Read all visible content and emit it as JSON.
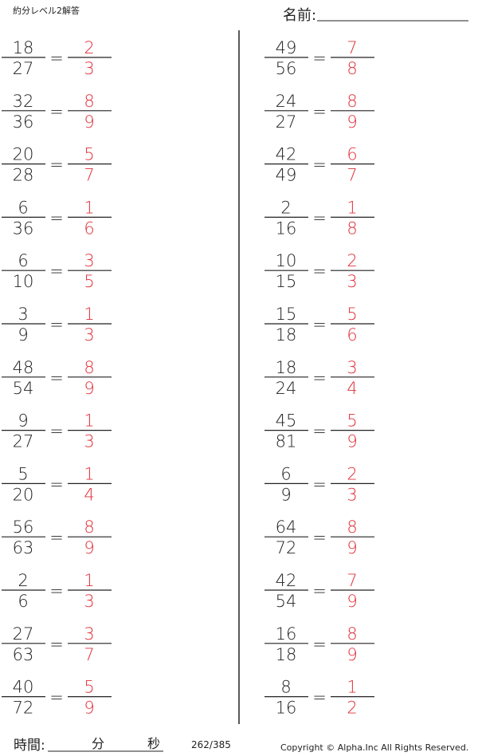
{
  "header": {
    "title": "約分レベル2解答",
    "name_label": "名前:"
  },
  "equals": "=",
  "problems": {
    "left": [
      [
        "18",
        "27",
        "2",
        "3"
      ],
      [
        "32",
        "36",
        "8",
        "9"
      ],
      [
        "20",
        "28",
        "5",
        "7"
      ],
      [
        "6",
        "36",
        "1",
        "6"
      ],
      [
        "6",
        "10",
        "3",
        "5"
      ],
      [
        "3",
        "9",
        "1",
        "3"
      ],
      [
        "48",
        "54",
        "8",
        "9"
      ],
      [
        "9",
        "27",
        "1",
        "3"
      ],
      [
        "5",
        "20",
        "1",
        "4"
      ],
      [
        "56",
        "63",
        "8",
        "9"
      ],
      [
        "2",
        "6",
        "1",
        "3"
      ],
      [
        "27",
        "63",
        "3",
        "7"
      ],
      [
        "40",
        "72",
        "5",
        "9"
      ]
    ],
    "right": [
      [
        "49",
        "56",
        "7",
        "8"
      ],
      [
        "24",
        "27",
        "8",
        "9"
      ],
      [
        "42",
        "49",
        "6",
        "7"
      ],
      [
        "2",
        "16",
        "1",
        "8"
      ],
      [
        "10",
        "15",
        "2",
        "3"
      ],
      [
        "15",
        "18",
        "5",
        "6"
      ],
      [
        "18",
        "24",
        "3",
        "4"
      ],
      [
        "45",
        "81",
        "5",
        "9"
      ],
      [
        "6",
        "9",
        "2",
        "3"
      ],
      [
        "64",
        "72",
        "8",
        "9"
      ],
      [
        "42",
        "54",
        "7",
        "9"
      ],
      [
        "16",
        "18",
        "8",
        "9"
      ],
      [
        "8",
        "16",
        "1",
        "2"
      ]
    ]
  },
  "footer": {
    "time_label": "時間:",
    "minutes": "分",
    "seconds": "秒",
    "page": "262/385",
    "copyright": "Copyright ©  Alpha.Inc All Rights Reserved."
  }
}
